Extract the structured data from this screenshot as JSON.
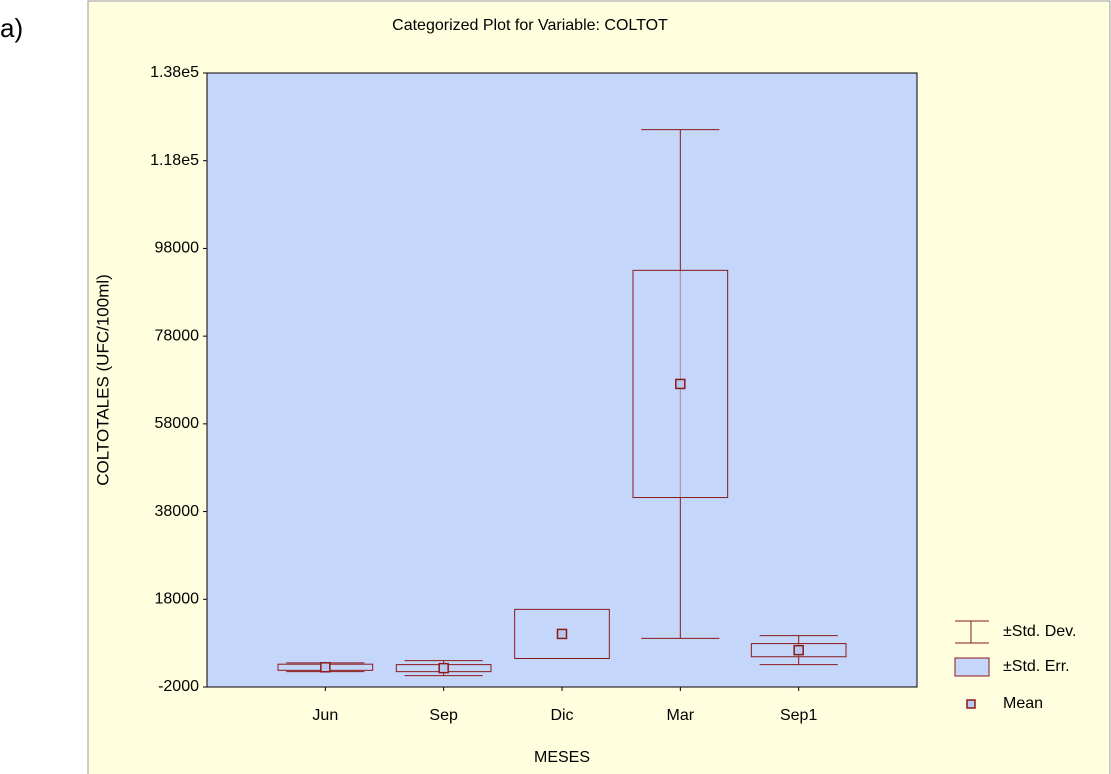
{
  "panel_label": "a)",
  "chart_data": {
    "type": "box",
    "title": "Categorized Plot for Variable: COLTOT",
    "x_label": "MESES",
    "y_label": "COLTOTALES (UFC/100ml)",
    "categories": [
      "Jun",
      "Sep",
      "Dic",
      "Mar",
      "Sep1"
    ],
    "mean": [
      2500,
      2300,
      10100,
      67100,
      6400
    ],
    "se": [
      700,
      800,
      5600,
      25900,
      1500
    ],
    "sd": [
      1000,
      1700,
      null,
      58000,
      3300
    ],
    "ylim": [
      -2000,
      138000
    ],
    "yticks": [
      -2000,
      18000,
      38000,
      58000,
      78000,
      98000,
      {
        "value": 118000,
        "label": "1.18e5"
      },
      {
        "value": 138000,
        "label": "1.38e5"
      }
    ],
    "legend": [
      "±Std. Dev.",
      "±Std. Err.",
      "Mean"
    ],
    "color": "#8b1a1a",
    "plot_background": "#c4d6f9"
  }
}
